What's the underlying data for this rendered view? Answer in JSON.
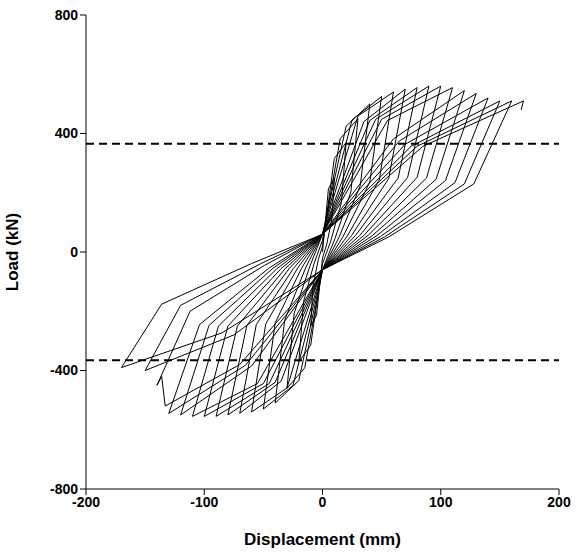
{
  "chart_data": {
    "type": "line",
    "x_label": "Displacement (mm)",
    "y_label": "Load (kN)",
    "xlim": [
      -200,
      200
    ],
    "xticks": [
      -200,
      -100,
      0,
      100,
      200
    ],
    "ylim": [
      -800,
      800
    ],
    "yticks": [
      -800,
      -400,
      0,
      400,
      800
    ],
    "grid": false,
    "series": [
      {
        "color": "#000000",
        "line_style": "solid",
        "x": [
          0,
          5,
          10,
          8,
          3.5,
          0,
          -5,
          -10,
          -8,
          -3.5,
          0,
          10,
          20,
          16,
          7,
          0,
          -10,
          -20,
          -16,
          -7,
          0,
          15,
          30,
          24,
          10.5,
          0,
          -15,
          -30,
          -24,
          -10.5,
          0,
          20,
          40,
          32,
          14,
          0,
          -20,
          -40,
          -32,
          -14,
          0,
          25,
          50,
          40,
          17.5,
          0,
          -25,
          -50,
          -40,
          -17.5,
          0,
          30,
          60,
          48,
          21,
          0,
          -30,
          -60,
          -48,
          -21,
          0,
          35,
          70,
          56,
          24.5,
          0,
          -35,
          -70,
          -56,
          -24.5,
          0,
          40,
          80,
          64,
          28,
          0,
          -40,
          -80,
          -64,
          -28,
          0,
          45,
          90,
          72,
          31.5,
          0,
          -45,
          -90,
          -72,
          -31.5,
          0,
          50,
          100,
          80,
          35,
          0,
          -50,
          -100,
          -80,
          -35,
          0,
          55,
          110,
          88,
          38.5,
          0,
          -55,
          -110,
          -88,
          -38.5,
          0,
          60,
          120,
          96,
          42,
          0,
          -60,
          -120,
          -96,
          -42,
          0,
          65,
          130,
          104,
          45.5,
          0,
          -65,
          -130,
          -104,
          -45.5,
          0,
          70,
          140,
          112,
          49,
          0,
          -70,
          -133,
          -136,
          -140,
          -112,
          -49,
          0,
          75,
          150,
          120,
          52.5,
          0,
          -75,
          -150,
          -120,
          -52.5,
          0,
          80,
          160,
          128,
          56,
          0,
          -85,
          -170,
          -136,
          -60,
          0,
          85,
          170,
          168
        ],
        "values": [
          0,
          213,
          250,
          113,
          25,
          -20,
          -213,
          -250,
          -113,
          -25,
          20,
          315,
          370,
          167,
          37,
          -40,
          -315,
          -370,
          -167,
          -37,
          40,
          383,
          450,
          203,
          45,
          -60,
          -391,
          -460,
          -207,
          -46,
          60,
          425,
          500,
          225,
          50,
          -60,
          -434,
          -510,
          -230,
          -51,
          60,
          446,
          525,
          236,
          53,
          -60,
          -451,
          -530,
          -239,
          -53,
          60,
          459,
          540,
          243,
          54,
          -60,
          -459,
          -540,
          -243,
          -54,
          60,
          440,
          550,
          248,
          55,
          -60,
          -436,
          -545,
          -245,
          -55,
          60,
          444,
          555,
          250,
          56,
          -60,
          -440,
          -550,
          -248,
          -55,
          60,
          448,
          560,
          252,
          56,
          -60,
          -444,
          -555,
          -250,
          -56,
          60,
          448,
          560,
          252,
          56,
          -60,
          -444,
          -555,
          -250,
          -56,
          60,
          444,
          555,
          250,
          56,
          -60,
          -444,
          -555,
          -250,
          -56,
          60,
          382,
          545,
          245,
          55,
          -60,
          -385,
          -550,
          -248,
          -55,
          60,
          375,
          535,
          241,
          54,
          -60,
          -382,
          -545,
          -245,
          -55,
          60,
          364,
          520,
          234,
          52,
          -60,
          -380,
          -520,
          -420,
          -450,
          -200,
          -45,
          60,
          357,
          510,
          230,
          51,
          -60,
          -280,
          -400,
          -180,
          -40,
          60,
          357,
          510,
          230,
          51,
          -60,
          -273,
          -390,
          -176,
          -39,
          60,
          357,
          510,
          480
        ]
      },
      {
        "color": "#000000",
        "line_style": "dashed",
        "x": [
          -200,
          200
        ],
        "values": [
          365,
          365
        ]
      },
      {
        "color": "#000000",
        "line_style": "dashed",
        "x": [
          -200,
          200
        ],
        "values": [
          -365,
          -365
        ]
      }
    ]
  }
}
